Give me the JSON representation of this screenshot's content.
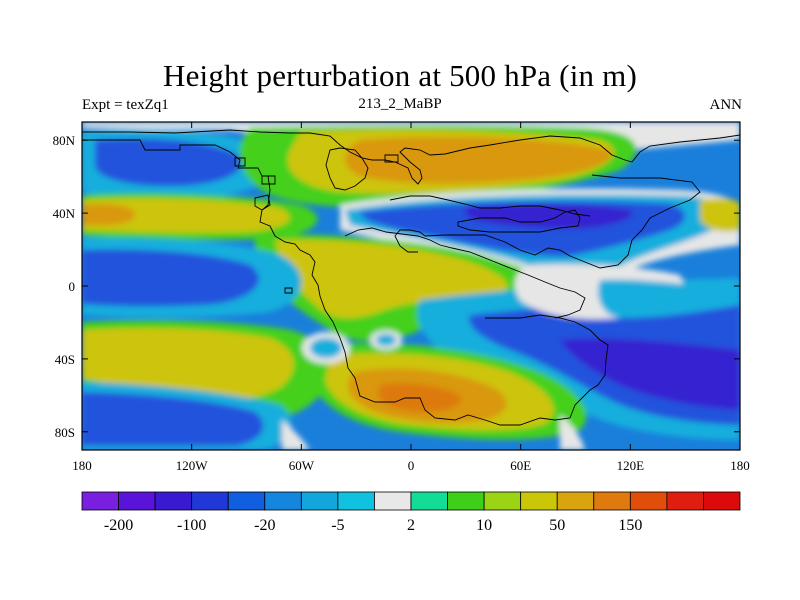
{
  "title": "Height perturbation at 500 hPa (in m)",
  "left_string": "Expt = texZq1",
  "center_string": "213_2_MaBP",
  "right_string": "ANN",
  "x_ticks": [
    {
      "lon": -180,
      "label": "180"
    },
    {
      "lon": -120,
      "label": "120W"
    },
    {
      "lon": -60,
      "label": "60W"
    },
    {
      "lon": 0,
      "label": "0"
    },
    {
      "lon": 60,
      "label": "60E"
    },
    {
      "lon": 120,
      "label": "120E"
    },
    {
      "lon": 180,
      "label": "180"
    }
  ],
  "y_ticks": [
    {
      "lat": 80,
      "label": "80N"
    },
    {
      "lat": 40,
      "label": "40N"
    },
    {
      "lat": 0,
      "label": "0"
    },
    {
      "lat": -40,
      "label": "40S"
    },
    {
      "lat": -80,
      "label": "80S"
    }
  ],
  "map_extent": {
    "lon_min": -180,
    "lon_max": 180,
    "lat_min": -90,
    "lat_max": 90
  },
  "colorbar": {
    "colors": [
      "#7a1fe0",
      "#5a13d8",
      "#3a1ad0",
      "#2138d8",
      "#0f5fe0",
      "#1586de",
      "#12a6dc",
      "#10c1e0",
      "#e8e8e8",
      "#12dc95",
      "#3ecf18",
      "#9ad414",
      "#cac608",
      "#d8a410",
      "#de7a0e",
      "#e04e0a",
      "#e01e10",
      "#dc0a0a"
    ],
    "labels": [
      {
        "index": 1,
        "text": "-200"
      },
      {
        "index": 3,
        "text": "-100"
      },
      {
        "index": 5,
        "text": "-20"
      },
      {
        "index": 7,
        "text": "-5"
      },
      {
        "index": 9,
        "text": "2"
      },
      {
        "index": 11,
        "text": "10"
      },
      {
        "index": 13,
        "text": "50"
      },
      {
        "index": 15,
        "text": "150"
      }
    ]
  },
  "field_colors": {
    "background": "#1a7fdb",
    "gray": "#e6e6e6",
    "cyan": "#12aedd",
    "teal": "#12dc95",
    "green": "#45d01a",
    "yellowgreen": "#a8d418",
    "yellow": "#cdc40a",
    "orange": "#d99810",
    "darkorange": "#dd7a10",
    "blue": "#2252dc",
    "darkblue": "#3424d0",
    "purpleblue": "#4a1ad0"
  }
}
